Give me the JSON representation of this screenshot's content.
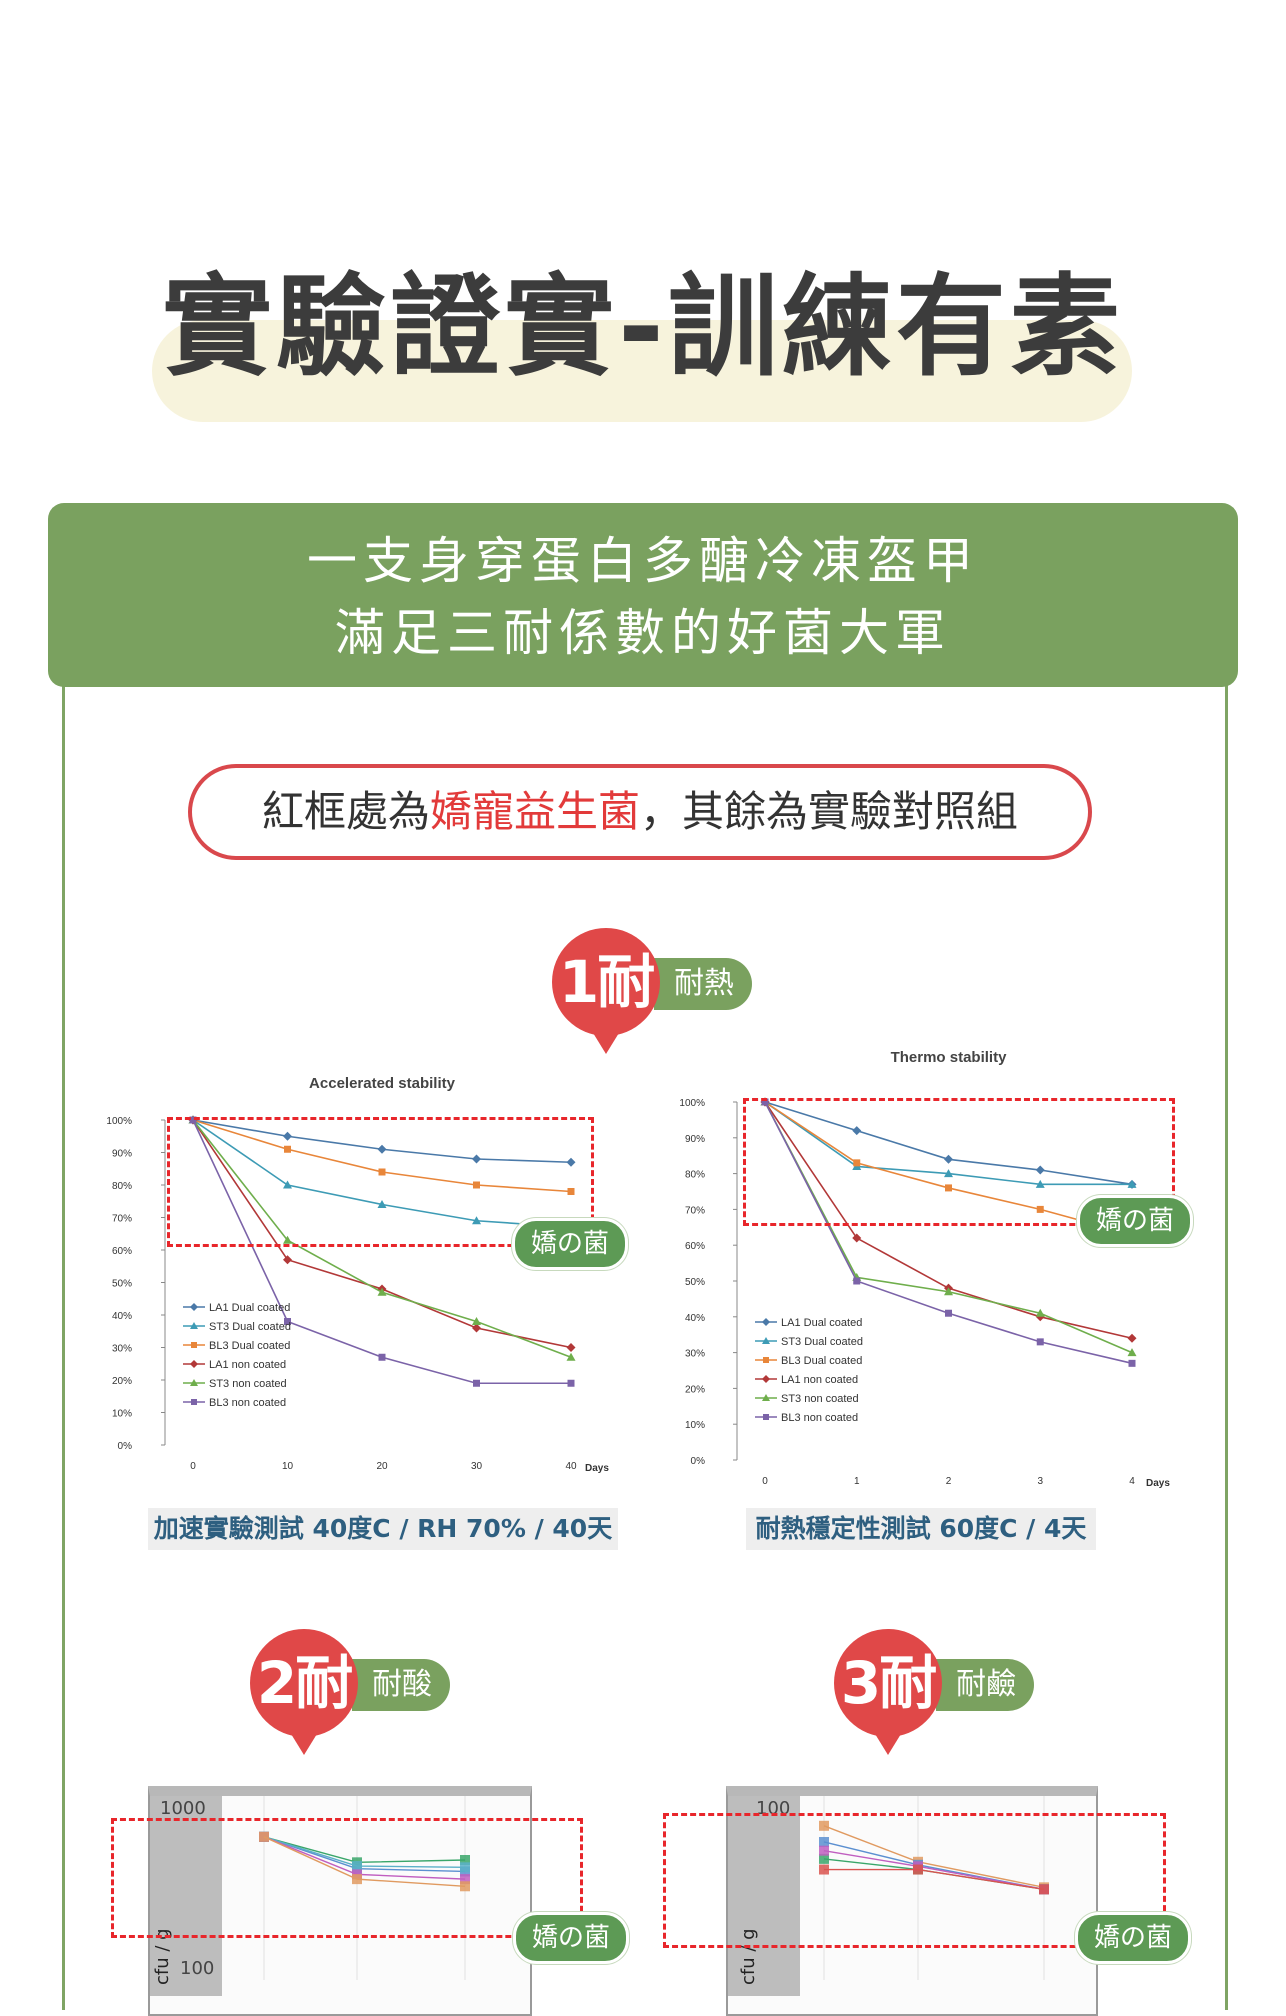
{
  "title": "實驗證實-訓練有素",
  "banner": {
    "line1": "一支身穿蛋白多醣冷凍盔甲",
    "line2": "滿足三耐係數的好菌大軍"
  },
  "note": {
    "prefix": "紅框處為",
    "highlight": "嬌寵益生菌",
    "suffix": "，其餘為實驗對照組"
  },
  "badges": [
    {
      "number": "1耐",
      "tag": "耐熱"
    },
    {
      "number": "2耐",
      "tag": "耐酸"
    },
    {
      "number": "3耐",
      "tag": "耐鹼"
    }
  ],
  "sticker_label": "嬌の菌",
  "colors": {
    "green": "#7aa15f",
    "red": "#e04848",
    "dashed_box": "#e8262b"
  },
  "chart_data": [
    {
      "type": "line",
      "title": "Accelerated stability",
      "caption": "加速實驗測試 40度C / RH 70% / 40天",
      "xlabel": "Days",
      "x": [
        0,
        10,
        20,
        30,
        40
      ],
      "x_ticks": [
        "0",
        "10",
        "20",
        "30",
        "40"
      ],
      "ylim": [
        0,
        100
      ],
      "y_ticks": [
        "100%",
        "90%",
        "80%",
        "70%",
        "60%",
        "50%",
        "40%",
        "30%",
        "20%",
        "10%",
        "0%"
      ],
      "legend_position": "bottom-left",
      "series": [
        {
          "name": "LA1 Dual coated",
          "color": "#4a79a8",
          "marker": "diamond",
          "values": [
            100,
            95,
            91,
            88,
            87
          ]
        },
        {
          "name": "ST3 Dual coated",
          "color": "#3d9bb5",
          "marker": "triangle",
          "values": [
            100,
            80,
            74,
            69,
            67
          ]
        },
        {
          "name": "BL3 Dual coated",
          "color": "#e8863a",
          "marker": "square",
          "values": [
            100,
            91,
            84,
            80,
            78
          ]
        },
        {
          "name": "LA1 non coated",
          "color": "#b23838",
          "marker": "diamond",
          "values": [
            100,
            57,
            48,
            36,
            30
          ]
        },
        {
          "name": "ST3 non coated",
          "color": "#6fae4c",
          "marker": "triangle",
          "values": [
            100,
            63,
            47,
            38,
            27
          ]
        },
        {
          "name": "BL3 non coated",
          "color": "#7b63a8",
          "marker": "square",
          "values": [
            100,
            38,
            27,
            19,
            19
          ]
        }
      ]
    },
    {
      "type": "line",
      "title": "Thermo stability",
      "caption": "耐熱穩定性測試 60度C / 4天",
      "xlabel": "Days",
      "x": [
        0,
        1,
        2,
        3,
        4
      ],
      "x_ticks": [
        "0",
        "1",
        "2",
        "3",
        "4"
      ],
      "ylim": [
        0,
        100
      ],
      "y_ticks": [
        "100%",
        "90%",
        "80%",
        "70%",
        "60%",
        "50%",
        "40%",
        "30%",
        "20%",
        "10%",
        "0%"
      ],
      "legend_position": "bottom-left",
      "series": [
        {
          "name": "LA1 Dual coated",
          "color": "#4a79a8",
          "marker": "diamond",
          "values": [
            100,
            92,
            84,
            81,
            77
          ]
        },
        {
          "name": "ST3 Dual coated",
          "color": "#3d9bb5",
          "marker": "triangle",
          "values": [
            100,
            82,
            80,
            77,
            77
          ]
        },
        {
          "name": "BL3 Dual coated",
          "color": "#e8863a",
          "marker": "square",
          "values": [
            100,
            83,
            76,
            70,
            63
          ]
        },
        {
          "name": "LA1 non coated",
          "color": "#b23838",
          "marker": "diamond",
          "values": [
            100,
            62,
            48,
            40,
            34
          ]
        },
        {
          "name": "ST3 non coated",
          "color": "#6fae4c",
          "marker": "triangle",
          "values": [
            100,
            51,
            47,
            41,
            30
          ]
        },
        {
          "name": "BL3 non coated",
          "color": "#7b63a8",
          "marker": "square",
          "values": [
            100,
            50,
            41,
            33,
            27
          ]
        }
      ]
    },
    {
      "type": "line",
      "ylabel": "cfu / g",
      "y_ticks": [
        "1000",
        "100"
      ],
      "series": [
        {
          "color": "#5b8fd0",
          "values": [
            700,
            370,
            350
          ]
        },
        {
          "color": "#3aa66a",
          "values": [
            700,
            420,
            440
          ]
        },
        {
          "color": "#5bb0c8",
          "values": [
            700,
            390,
            380
          ]
        },
        {
          "color": "#c05ec0",
          "values": [
            700,
            330,
            300
          ]
        },
        {
          "color": "#e09a60",
          "values": [
            700,
            300,
            260
          ]
        }
      ]
    },
    {
      "type": "line",
      "ylabel": "cfu / g",
      "y_ticks": [
        "100"
      ],
      "series": [
        {
          "color": "#e09a60",
          "values": [
            90,
            60,
            45
          ]
        },
        {
          "color": "#5b8fd0",
          "values": [
            75,
            58,
            44
          ]
        },
        {
          "color": "#3aa66a",
          "values": [
            62,
            55,
            44
          ]
        },
        {
          "color": "#c05ec0",
          "values": [
            68,
            57,
            44
          ]
        },
        {
          "color": "#d9534f",
          "values": [
            55,
            55,
            44
          ]
        }
      ]
    }
  ]
}
